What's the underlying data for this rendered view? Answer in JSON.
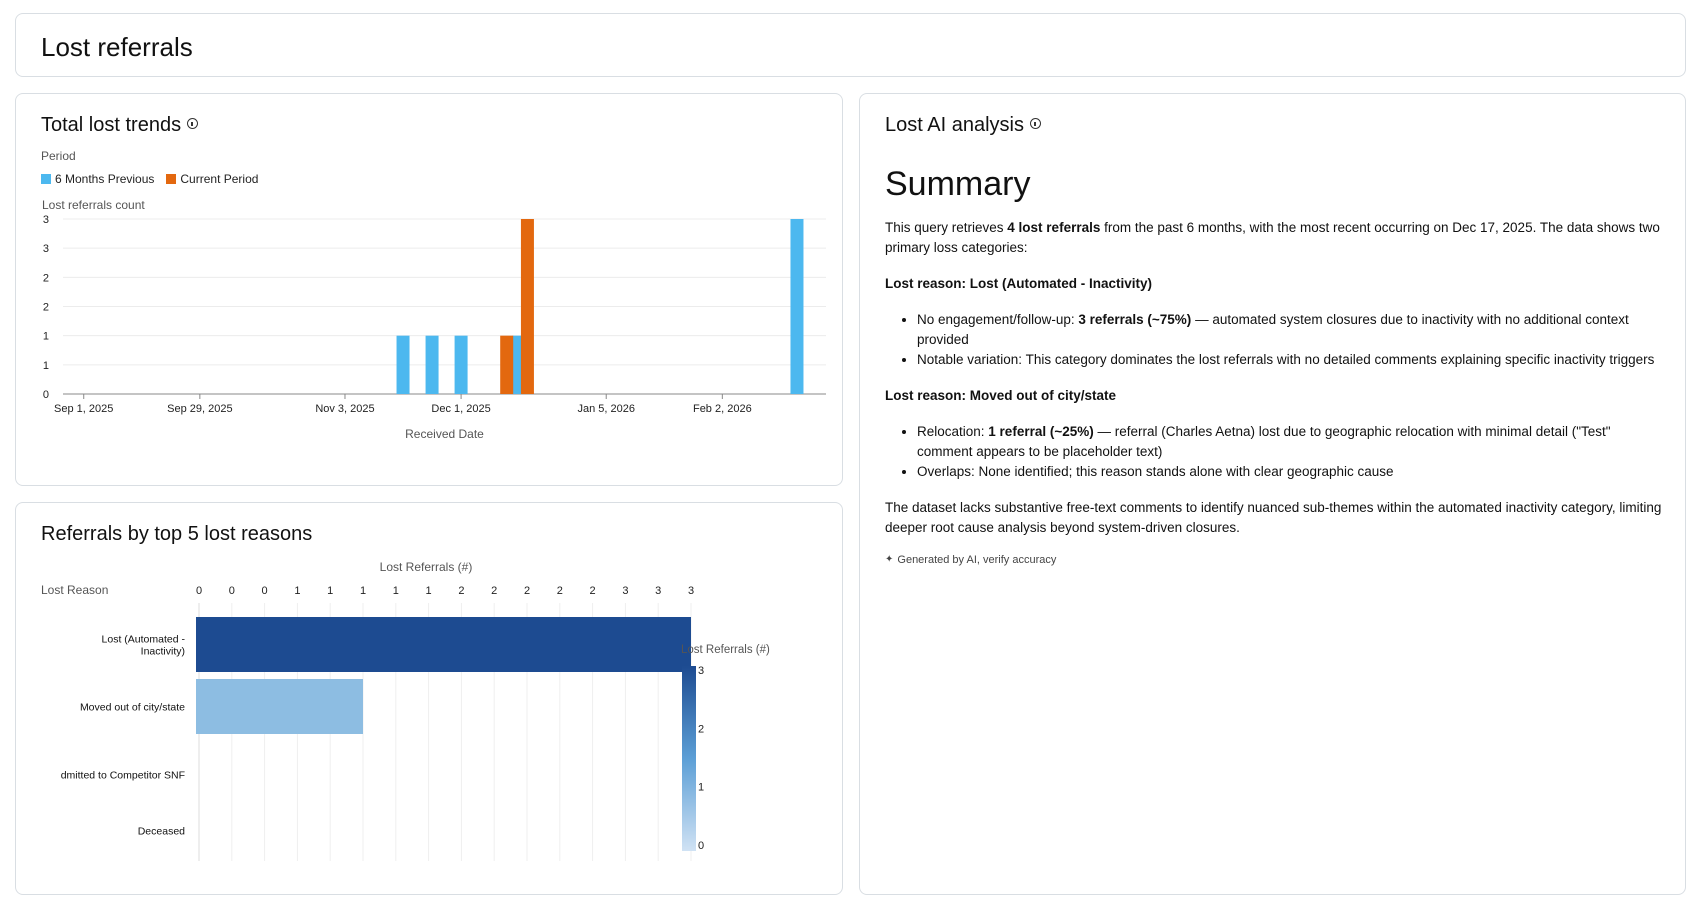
{
  "header": {
    "title": "Lost referrals"
  },
  "trends": {
    "title": "Total lost trends",
    "legend_title": "Period",
    "chart_data": {
      "type": "bar",
      "ylabel": "Lost referrals count",
      "xlabel": "Received Date",
      "x_ticks": [
        "Sep 1, 2025",
        "Sep 29, 2025",
        "Nov 3, 2025",
        "Dec 1, 2025",
        "Jan 5, 2026",
        "Feb 2, 2026"
      ],
      "x_tick_dates": [
        "2025-09-01",
        "2025-09-29",
        "2025-11-03",
        "2025-12-01",
        "2026-01-05",
        "2026-02-02"
      ],
      "y_ticks": [
        "0",
        "1",
        "1",
        "2",
        "2",
        "3",
        "3"
      ],
      "ylim": [
        0,
        3
      ],
      "x_range": [
        "2025-08-27",
        "2026-02-27"
      ],
      "series": [
        {
          "name": "6 Months Previous",
          "color": "#4cb8ef",
          "points": [
            {
              "x": "2025-11-17",
              "y": 1
            },
            {
              "x": "2025-11-24",
              "y": 1
            },
            {
              "x": "2025-12-01",
              "y": 1
            },
            {
              "x": "2025-12-15",
              "y": 1
            },
            {
              "x": "2026-02-20",
              "y": 3
            }
          ]
        },
        {
          "name": "Current Period",
          "color": "#e3680f",
          "points": [
            {
              "x": "2025-12-12",
              "y": 1
            },
            {
              "x": "2025-12-17",
              "y": 3
            }
          ]
        }
      ]
    }
  },
  "reasons": {
    "title": "Referrals by top 5 lost reasons",
    "chart_data": {
      "type": "bar",
      "orientation": "horizontal",
      "xlabel": "Lost Referrals (#)",
      "ylabel": "Lost Reason",
      "x_ticks": [
        "0",
        "0",
        "0",
        "1",
        "1",
        "1",
        "1",
        "1",
        "2",
        "2",
        "2",
        "2",
        "2",
        "3",
        "3",
        "3"
      ],
      "xlim": [
        0,
        3
      ],
      "categories": [
        "Lost (Automated - Inactivity)",
        "Moved out of city/state",
        "Admitted to Competitor SNF",
        "Deceased"
      ],
      "values": [
        3,
        1,
        0,
        0
      ],
      "legend_title": "Lost Referrals (#)",
      "legend_ticks": [
        "3",
        "2",
        "1",
        "0"
      ],
      "color_low": "#d0e2f4",
      "color_high": "#1d4b91"
    }
  },
  "ai": {
    "title": "Lost AI analysis",
    "summary_heading": "Summary",
    "intro": {
      "pre": "This query retrieves ",
      "bold": "4 lost referrals",
      "post": " from the past 6 months, with the most recent occurring on Dec 17, 2025. The data shows two primary loss categories:"
    },
    "section1": {
      "heading": "Lost reason: Lost (Automated - Inactivity)",
      "b1_pre": "No engagement/follow-up: ",
      "b1_bold": "3 referrals (~75%)",
      "b1_post": " — automated system closures due to inactivity with no additional context provided",
      "b2": "Notable variation: This category dominates the lost referrals with no detailed comments explaining specific inactivity triggers"
    },
    "section2": {
      "heading": "Lost reason: Moved out of city/state",
      "b1_pre": "Relocation: ",
      "b1_bold": "1 referral (~25%)",
      "b1_post": " — referral (Charles Aetna) lost due to geographic relocation with minimal detail (\"Test\" comment appears to be placeholder text)",
      "b2": "Overlaps: None identified; this reason stands alone with clear geographic cause"
    },
    "conclusion": "The dataset lacks substantive free-text comments to identify nuanced sub-themes within the automated inactivity category, limiting deeper root cause analysis beyond system-driven closures.",
    "footer": "Generated by AI, verify accuracy"
  }
}
